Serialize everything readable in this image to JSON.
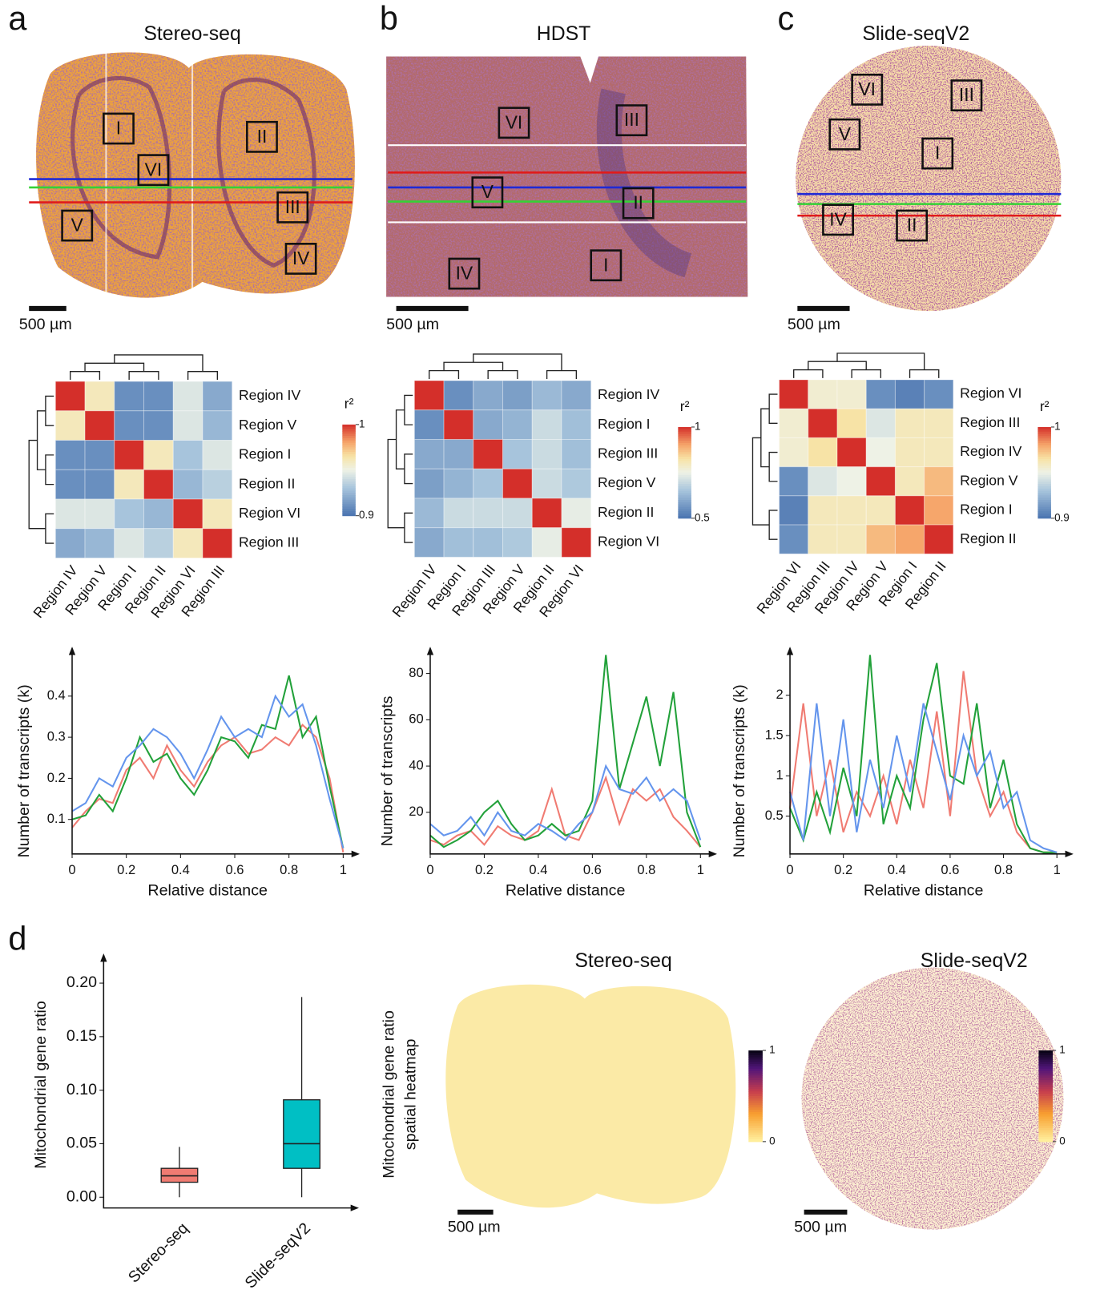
{
  "panel_labels": [
    "a",
    "b",
    "c",
    "d"
  ],
  "tissue_maps": [
    {
      "title": "Stereo-seq",
      "scale_bar": "500 µm",
      "regions": [
        "I",
        "II",
        "VI",
        "III",
        "V",
        "IV"
      ]
    },
    {
      "title": "HDST",
      "scale_bar": "500 µm",
      "regions": [
        "VI",
        "III",
        "V",
        "II",
        "IV",
        "I"
      ]
    },
    {
      "title": "Slide-seqV2",
      "scale_bar": "500 µm",
      "regions": [
        "VI",
        "III",
        "V",
        "I",
        "IV",
        "II"
      ]
    }
  ],
  "chart_data": [
    {
      "type": "heatmap",
      "rows": [
        "Region IV",
        "Region V",
        "Region I",
        "Region II",
        "Region VI",
        "Region III"
      ],
      "columns": [
        "Region IV",
        "Region V",
        "Region I",
        "Region II",
        "Region VI",
        "Region III"
      ],
      "values": [
        [
          1,
          0.96,
          0.91,
          0.91,
          0.945,
          0.92
        ],
        [
          0.96,
          1,
          0.91,
          0.91,
          0.945,
          0.925
        ],
        [
          0.91,
          0.91,
          1,
          0.96,
          0.93,
          0.945
        ],
        [
          0.91,
          0.91,
          0.96,
          1,
          0.925,
          0.935
        ],
        [
          0.945,
          0.945,
          0.93,
          0.925,
          1,
          0.96
        ],
        [
          0.92,
          0.925,
          0.945,
          0.935,
          0.96,
          1
        ]
      ],
      "clim": [
        0.9,
        1
      ],
      "colorbar_label": "r²",
      "colorbar_ticks": [
        1,
        0.9
      ]
    },
    {
      "type": "heatmap",
      "rows": [
        "Region IV",
        "Region I",
        "Region III",
        "Region V",
        "Region II",
        "Region VI"
      ],
      "columns": [
        "Region IV",
        "Region I",
        "Region III",
        "Region V",
        "Region II",
        "Region VI"
      ],
      "values": [
        [
          1,
          0.55,
          0.6,
          0.58,
          0.63,
          0.6
        ],
        [
          0.55,
          1,
          0.6,
          0.62,
          0.7,
          0.64
        ],
        [
          0.6,
          0.6,
          1,
          0.65,
          0.7,
          0.64
        ],
        [
          0.58,
          0.62,
          0.65,
          1,
          0.7,
          0.66
        ],
        [
          0.63,
          0.7,
          0.7,
          0.7,
          1,
          0.74
        ],
        [
          0.6,
          0.64,
          0.64,
          0.66,
          0.74,
          1
        ]
      ],
      "clim": [
        0.5,
        1
      ],
      "colorbar_label": "r²",
      "colorbar_ticks": [
        1,
        0.5
      ]
    },
    {
      "type": "heatmap",
      "rows": [
        "Region VI",
        "Region III",
        "Region IV",
        "Region V",
        "Region I",
        "Region II"
      ],
      "columns": [
        "Region VI",
        "Region III",
        "Region IV",
        "Region V",
        "Region I",
        "Region II"
      ],
      "values": [
        [
          1,
          0.955,
          0.955,
          0.91,
          0.905,
          0.91
        ],
        [
          0.955,
          1,
          0.965,
          0.945,
          0.96,
          0.96
        ],
        [
          0.955,
          0.965,
          1,
          0.95,
          0.96,
          0.96
        ],
        [
          0.91,
          0.945,
          0.95,
          1,
          0.96,
          0.975
        ],
        [
          0.905,
          0.96,
          0.96,
          0.96,
          1,
          0.98
        ],
        [
          0.91,
          0.96,
          0.96,
          0.975,
          0.98,
          1
        ]
      ],
      "clim": [
        0.9,
        1
      ],
      "colorbar_label": "r²",
      "colorbar_ticks": [
        1,
        0.9
      ]
    },
    {
      "type": "line",
      "y_label": "Number of transcripts (k)",
      "x_label": "Relative distance",
      "x": [
        0,
        0.05,
        0.1,
        0.15,
        0.2,
        0.25,
        0.3,
        0.35,
        0.4,
        0.45,
        0.5,
        0.55,
        0.6,
        0.65,
        0.7,
        0.75,
        0.8,
        0.85,
        0.9,
        0.95,
        1
      ],
      "xlim": [
        0,
        1
      ],
      "xticks": [
        0,
        0.2,
        0.4,
        0.6,
        0.8,
        1
      ],
      "ylim": [
        0.016,
        0.5
      ],
      "yticks": [
        0.1,
        0.2,
        0.3,
        0.4
      ],
      "series": [
        {
          "color": "#f07b72",
          "values": [
            0.08,
            0.12,
            0.15,
            0.14,
            0.22,
            0.25,
            0.2,
            0.28,
            0.22,
            0.18,
            0.24,
            0.28,
            0.3,
            0.26,
            0.27,
            0.3,
            0.28,
            0.33,
            0.3,
            0.2,
            0.02
          ]
        },
        {
          "color": "#22a13a",
          "values": [
            0.1,
            0.11,
            0.16,
            0.12,
            0.2,
            0.3,
            0.24,
            0.26,
            0.2,
            0.16,
            0.22,
            0.3,
            0.29,
            0.25,
            0.33,
            0.32,
            0.45,
            0.3,
            0.35,
            0.18,
            0.03
          ]
        },
        {
          "color": "#6495ed",
          "values": [
            0.12,
            0.14,
            0.2,
            0.18,
            0.25,
            0.28,
            0.32,
            0.3,
            0.26,
            0.2,
            0.27,
            0.35,
            0.3,
            0.32,
            0.3,
            0.4,
            0.35,
            0.38,
            0.28,
            0.15,
            0.03
          ]
        }
      ]
    },
    {
      "type": "line",
      "y_label": "Number of transcripts",
      "x_label": "Relative distance",
      "x": [
        0,
        0.05,
        0.1,
        0.15,
        0.2,
        0.25,
        0.3,
        0.35,
        0.4,
        0.45,
        0.5,
        0.55,
        0.6,
        0.65,
        0.7,
        0.75,
        0.8,
        0.85,
        0.9,
        0.95,
        1
      ],
      "xlim": [
        0,
        1
      ],
      "xticks": [
        0,
        0.2,
        0.4,
        0.6,
        0.8,
        1
      ],
      "ylim": [
        2,
        88
      ],
      "yticks": [
        20,
        40,
        60,
        80
      ],
      "series": [
        {
          "color": "#f07b72",
          "values": [
            8,
            6,
            10,
            12,
            6,
            14,
            10,
            8,
            12,
            30,
            10,
            8,
            20,
            35,
            15,
            30,
            25,
            30,
            18,
            12,
            5
          ]
        },
        {
          "color": "#22a13a",
          "values": [
            10,
            5,
            8,
            12,
            20,
            25,
            15,
            8,
            10,
            15,
            10,
            12,
            25,
            88,
            30,
            50,
            70,
            40,
            72,
            20,
            5
          ]
        },
        {
          "color": "#6495ed",
          "values": [
            15,
            10,
            12,
            18,
            10,
            20,
            12,
            10,
            15,
            12,
            8,
            15,
            20,
            40,
            30,
            28,
            35,
            25,
            30,
            25,
            8
          ]
        }
      ]
    },
    {
      "type": "line",
      "y_label": "Number of transcripts (k)",
      "x_label": "Relative distance",
      "x": [
        0,
        0.05,
        0.1,
        0.15,
        0.2,
        0.25,
        0.3,
        0.35,
        0.4,
        0.45,
        0.5,
        0.55,
        0.6,
        0.65,
        0.7,
        0.75,
        0.8,
        0.85,
        0.9,
        0.95,
        1
      ],
      "xlim": [
        0,
        1
      ],
      "xticks": [
        0,
        0.2,
        0.4,
        0.6,
        0.8,
        1
      ],
      "ylim": [
        0.03,
        2.5
      ],
      "yticks": [
        0.5,
        1,
        1.5,
        2
      ],
      "series": [
        {
          "color": "#f07b72",
          "values": [
            0.6,
            1.9,
            0.5,
            1.2,
            0.3,
            0.8,
            0.5,
            1.0,
            0.4,
            1.2,
            0.6,
            1.8,
            0.5,
            2.3,
            1.0,
            0.5,
            0.8,
            0.3,
            0.1,
            0.05,
            0.05
          ]
        },
        {
          "color": "#22a13a",
          "values": [
            0.6,
            0.2,
            0.8,
            0.3,
            1.1,
            0.5,
            2.5,
            0.4,
            1.0,
            0.6,
            1.7,
            2.4,
            1.0,
            0.9,
            1.9,
            0.6,
            1.2,
            0.4,
            0.1,
            0.05,
            0.05
          ]
        },
        {
          "color": "#6495ed",
          "values": [
            0.8,
            0.2,
            1.9,
            0.5,
            1.7,
            0.3,
            1.2,
            0.6,
            1.5,
            0.8,
            1.9,
            1.3,
            0.7,
            1.5,
            1.0,
            1.3,
            0.6,
            0.8,
            0.2,
            0.1,
            0.05
          ]
        }
      ]
    },
    {
      "type": "box",
      "y_label": "Mitochondrial gene ratio",
      "categories": [
        "Stereo-seq",
        "Slide-seqV2"
      ],
      "colors": [
        "#f07b72",
        "#00bfc4"
      ],
      "stats": [
        {
          "min": 0,
          "q1": 0.014,
          "median": 0.02,
          "q3": 0.027,
          "max": 0.047
        },
        {
          "min": 0,
          "q1": 0.027,
          "median": 0.05,
          "q3": 0.091,
          "max": 0.187
        }
      ],
      "ylim": [
        -0.01,
        0.22
      ],
      "yticks": [
        {
          "value": 0,
          "label": "0.00"
        },
        {
          "value": 0.05,
          "label": "0.05"
        },
        {
          "value": 0.1,
          "label": "0.10"
        },
        {
          "value": 0.15,
          "label": "0.15"
        },
        {
          "value": 0.2,
          "label": "0.20"
        }
      ]
    }
  ],
  "mito_maps": {
    "y_label": [
      "Mitochondrial gene ratio",
      "spatial heatmap"
    ],
    "maps": [
      {
        "title": "Stereo-seq",
        "scale_bar": "500 µm",
        "clim": [
          0,
          1
        ],
        "colorbar_ticks": [
          1,
          0
        ]
      },
      {
        "title": "Slide-seqV2",
        "scale_bar": "500 µm",
        "clim": [
          0,
          1
        ],
        "colorbar_ticks": [
          1,
          0
        ]
      }
    ]
  }
}
